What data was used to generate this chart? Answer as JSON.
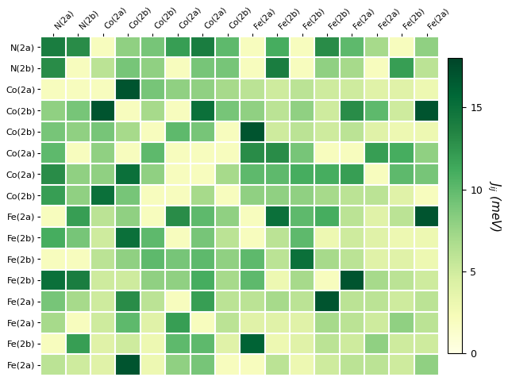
{
  "row_labels": [
    "N(2a)",
    "N(2b)",
    "Co(2a)",
    "Co(2b)",
    "Co(2b)",
    "Co(2a)",
    "Co(2a)",
    "Co(2b)",
    "Fe(2a)",
    "Fe(2b)",
    "Fe(2b)",
    "Fe(2b)",
    "Fe(2a)",
    "Fe(2a)",
    "Fe(2b)",
    "Fe(2a)"
  ],
  "col_labels": [
    "N(2a)",
    "N(2b)",
    "Co(2a)",
    "Co(2b)",
    "Co(2b)",
    "Co(2a)",
    "Co(2a)",
    "Co(2b)",
    "Fe(2a)",
    "Fe(2b)",
    "Fe(2b)",
    "Fe(2b)",
    "Fe(2a)",
    "Fe(2a)",
    "Fe(2b)",
    "Fe(2a)"
  ],
  "matrix": [
    [
      14,
      13,
      2,
      8,
      9,
      12,
      14,
      10,
      2,
      11,
      2,
      13,
      10,
      7,
      2,
      8
    ],
    [
      13,
      2,
      6,
      9,
      8,
      2,
      9,
      9,
      2,
      14,
      2,
      8,
      7,
      2,
      12,
      6
    ],
    [
      2,
      2,
      2,
      17,
      9,
      8,
      8,
      7,
      6,
      5,
      6,
      5,
      5,
      4,
      4,
      3
    ],
    [
      8,
      9,
      17,
      2,
      7,
      2,
      15,
      9,
      8,
      6,
      8,
      5,
      13,
      10,
      5,
      17
    ],
    [
      9,
      8,
      9,
      7,
      2,
      10,
      9,
      2,
      17,
      5,
      6,
      5,
      6,
      4,
      3,
      3
    ],
    [
      10,
      2,
      8,
      2,
      10,
      2,
      2,
      2,
      13,
      13,
      9,
      2,
      2,
      12,
      11,
      8
    ],
    [
      13,
      8,
      8,
      15,
      8,
      2,
      2,
      7,
      10,
      10,
      11,
      11,
      12,
      2,
      10,
      9
    ],
    [
      12,
      8,
      15,
      9,
      2,
      2,
      7,
      2,
      8,
      8,
      8,
      7,
      6,
      6,
      4,
      2
    ],
    [
      2,
      12,
      6,
      8,
      2,
      13,
      10,
      8,
      2,
      15,
      10,
      11,
      6,
      4,
      6,
      17
    ],
    [
      11,
      9,
      5,
      15,
      10,
      2,
      9,
      6,
      2,
      6,
      10,
      3,
      5,
      4,
      3,
      3
    ],
    [
      2,
      2,
      6,
      8,
      10,
      9,
      10,
      8,
      10,
      6,
      15,
      7,
      6,
      4,
      4,
      3
    ],
    [
      15,
      14,
      5,
      5,
      8,
      8,
      11,
      7,
      10,
      3,
      7,
      2,
      17,
      7,
      6,
      5
    ],
    [
      9,
      7,
      5,
      13,
      6,
      2,
      12,
      6,
      6,
      7,
      6,
      17,
      6,
      6,
      5,
      6
    ],
    [
      7,
      2,
      5,
      10,
      4,
      12,
      2,
      6,
      4,
      4,
      4,
      7,
      6,
      5,
      8,
      6
    ],
    [
      2,
      12,
      4,
      5,
      3,
      10,
      10,
      4,
      16,
      3,
      4,
      6,
      5,
      8,
      5,
      5
    ],
    [
      6,
      5,
      4,
      17,
      3,
      8,
      9,
      2,
      2,
      6,
      3,
      5,
      6,
      6,
      5,
      8
    ]
  ],
  "vmin": 0,
  "vmax": 18,
  "cbar_label": "$J_{ij}$ (meV)",
  "cbar_ticks": [
    0,
    5,
    10,
    15
  ],
  "colormap": "YlGn",
  "figsize": [
    6.4,
    4.8
  ],
  "dpi": 100
}
